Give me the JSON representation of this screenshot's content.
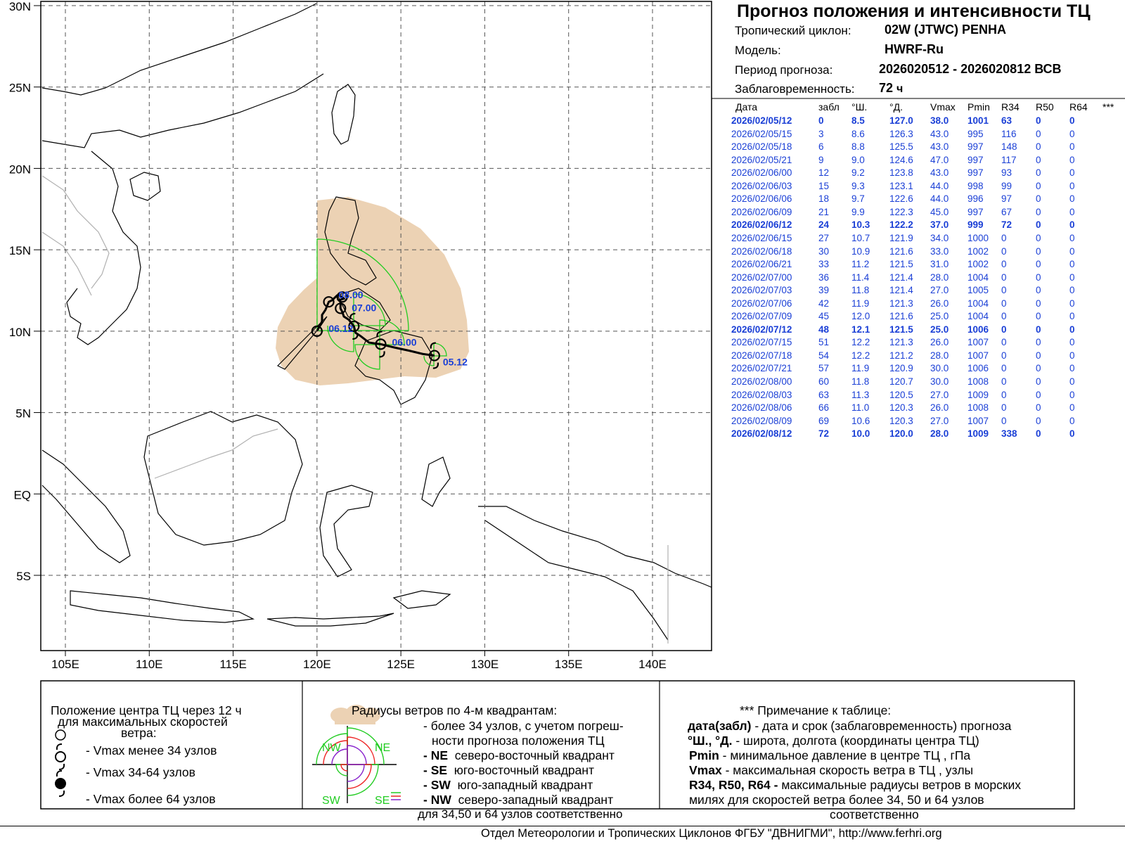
{
  "header": {
    "title": "Прогноз положения и интенсивности ТЦ",
    "cyclone_label": "Тропический циклон:",
    "cyclone_value": "02W (JTWC)  PENHA",
    "model_label": "Модель:",
    "model_value": "HWRF-Ru",
    "period_label": "Период прогноза:",
    "period_value": "2026020512 - 2026020812 ВСВ",
    "lead_label": "Заблаговременность:",
    "lead_value": "72",
    "lead_unit": "ч"
  },
  "table": {
    "columns": [
      "Дата",
      "забл",
      "°Ш.",
      "°Д.",
      "Vmax",
      "Pmin",
      "R34",
      "R50",
      "R64",
      "***"
    ],
    "rows": [
      {
        "date": "2026/02/05/12",
        "lead": "0",
        "lat": "8.5",
        "lon": "127.0",
        "vmax": "38.0",
        "pmin": "1001",
        "r34": "63",
        "r50": "0",
        "r64": "0",
        "bold": true
      },
      {
        "date": "2026/02/05/15",
        "lead": "3",
        "lat": "8.6",
        "lon": "126.3",
        "vmax": "43.0",
        "pmin": "995",
        "r34": "116",
        "r50": "0",
        "r64": "0",
        "bold": false
      },
      {
        "date": "2026/02/05/18",
        "lead": "6",
        "lat": "8.8",
        "lon": "125.5",
        "vmax": "43.0",
        "pmin": "997",
        "r34": "148",
        "r50": "0",
        "r64": "0",
        "bold": false
      },
      {
        "date": "2026/02/05/21",
        "lead": "9",
        "lat": "9.0",
        "lon": "124.6",
        "vmax": "47.0",
        "pmin": "997",
        "r34": "117",
        "r50": "0",
        "r64": "0",
        "bold": false
      },
      {
        "date": "2026/02/06/00",
        "lead": "12",
        "lat": "9.2",
        "lon": "123.8",
        "vmax": "43.0",
        "pmin": "997",
        "r34": "93",
        "r50": "0",
        "r64": "0",
        "bold": false
      },
      {
        "date": "2026/02/06/03",
        "lead": "15",
        "lat": "9.3",
        "lon": "123.1",
        "vmax": "44.0",
        "pmin": "998",
        "r34": "99",
        "r50": "0",
        "r64": "0",
        "bold": false
      },
      {
        "date": "2026/02/06/06",
        "lead": "18",
        "lat": "9.7",
        "lon": "122.6",
        "vmax": "44.0",
        "pmin": "996",
        "r34": "97",
        "r50": "0",
        "r64": "0",
        "bold": false
      },
      {
        "date": "2026/02/06/09",
        "lead": "21",
        "lat": "9.9",
        "lon": "122.3",
        "vmax": "45.0",
        "pmin": "997",
        "r34": "67",
        "r50": "0",
        "r64": "0",
        "bold": false
      },
      {
        "date": "2026/02/06/12",
        "lead": "24",
        "lat": "10.3",
        "lon": "122.2",
        "vmax": "37.0",
        "pmin": "999",
        "r34": "72",
        "r50": "0",
        "r64": "0",
        "bold": true
      },
      {
        "date": "2026/02/06/15",
        "lead": "27",
        "lat": "10.7",
        "lon": "121.9",
        "vmax": "34.0",
        "pmin": "1000",
        "r34": "0",
        "r50": "0",
        "r64": "0",
        "bold": false
      },
      {
        "date": "2026/02/06/18",
        "lead": "30",
        "lat": "10.9",
        "lon": "121.6",
        "vmax": "33.0",
        "pmin": "1002",
        "r34": "0",
        "r50": "0",
        "r64": "0",
        "bold": false
      },
      {
        "date": "2026/02/06/21",
        "lead": "33",
        "lat": "11.2",
        "lon": "121.5",
        "vmax": "31.0",
        "pmin": "1002",
        "r34": "0",
        "r50": "0",
        "r64": "0",
        "bold": false
      },
      {
        "date": "2026/02/07/00",
        "lead": "36",
        "lat": "11.4",
        "lon": "121.4",
        "vmax": "28.0",
        "pmin": "1004",
        "r34": "0",
        "r50": "0",
        "r64": "0",
        "bold": false
      },
      {
        "date": "2026/02/07/03",
        "lead": "39",
        "lat": "11.8",
        "lon": "121.4",
        "vmax": "27.0",
        "pmin": "1005",
        "r34": "0",
        "r50": "0",
        "r64": "0",
        "bold": false
      },
      {
        "date": "2026/02/07/06",
        "lead": "42",
        "lat": "11.9",
        "lon": "121.3",
        "vmax": "26.0",
        "pmin": "1004",
        "r34": "0",
        "r50": "0",
        "r64": "0",
        "bold": false
      },
      {
        "date": "2026/02/07/09",
        "lead": "45",
        "lat": "12.0",
        "lon": "121.6",
        "vmax": "25.0",
        "pmin": "1004",
        "r34": "0",
        "r50": "0",
        "r64": "0",
        "bold": false
      },
      {
        "date": "2026/02/07/12",
        "lead": "48",
        "lat": "12.1",
        "lon": "121.5",
        "vmax": "25.0",
        "pmin": "1006",
        "r34": "0",
        "r50": "0",
        "r64": "0",
        "bold": true
      },
      {
        "date": "2026/02/07/15",
        "lead": "51",
        "lat": "12.2",
        "lon": "121.3",
        "vmax": "26.0",
        "pmin": "1007",
        "r34": "0",
        "r50": "0",
        "r64": "0",
        "bold": false
      },
      {
        "date": "2026/02/07/18",
        "lead": "54",
        "lat": "12.2",
        "lon": "121.2",
        "vmax": "28.0",
        "pmin": "1007",
        "r34": "0",
        "r50": "0",
        "r64": "0",
        "bold": false
      },
      {
        "date": "2026/02/07/21",
        "lead": "57",
        "lat": "11.9",
        "lon": "120.9",
        "vmax": "30.0",
        "pmin": "1006",
        "r34": "0",
        "r50": "0",
        "r64": "0",
        "bold": false
      },
      {
        "date": "2026/02/08/00",
        "lead": "60",
        "lat": "11.8",
        "lon": "120.7",
        "vmax": "30.0",
        "pmin": "1008",
        "r34": "0",
        "r50": "0",
        "r64": "0",
        "bold": false
      },
      {
        "date": "2026/02/08/03",
        "lead": "63",
        "lat": "11.3",
        "lon": "120.5",
        "vmax": "27.0",
        "pmin": "1009",
        "r34": "0",
        "r50": "0",
        "r64": "0",
        "bold": false
      },
      {
        "date": "2026/02/08/06",
        "lead": "66",
        "lat": "11.0",
        "lon": "120.3",
        "vmax": "26.0",
        "pmin": "1008",
        "r34": "0",
        "r50": "0",
        "r64": "0",
        "bold": false
      },
      {
        "date": "2026/02/08/09",
        "lead": "69",
        "lat": "10.6",
        "lon": "120.3",
        "vmax": "27.0",
        "pmin": "1007",
        "r34": "0",
        "r50": "0",
        "r64": "0",
        "bold": false
      },
      {
        "date": "2026/02/08/12",
        "lead": "72",
        "lat": "10.0",
        "lon": "120.0",
        "vmax": "28.0",
        "pmin": "1009",
        "r34": "338",
        "r50": "0",
        "r64": "0",
        "bold": true
      }
    ]
  },
  "map": {
    "lat_labels": [
      "30N",
      "25N",
      "20N",
      "15N",
      "10N",
      "5N",
      "EQ",
      "5S"
    ],
    "lon_labels": [
      "105E",
      "110E",
      "115E",
      "120E",
      "125E",
      "130E",
      "135E",
      "140E"
    ],
    "lat_values": [
      30,
      25,
      20,
      15,
      10,
      5,
      0,
      -5
    ],
    "lon_values": [
      105,
      110,
      115,
      120,
      125,
      130,
      135,
      140
    ],
    "lon_range": [
      103.5,
      143.5
    ],
    "lat_range": [
      -9.5,
      30
    ],
    "track_labels": [
      {
        "text": "05.12",
        "lat": 8.5,
        "lon": 127.0
      },
      {
        "text": "06.00",
        "lat": 9.2,
        "lon": 123.8
      },
      {
        "text": "06.12",
        "lat": 10.3,
        "lon": 122.2
      },
      {
        "text": "07.00",
        "lat": 11.4,
        "lon": 121.4
      },
      {
        "text": "08.00",
        "lat": 11.8,
        "lon": 120.7
      }
    ],
    "land_color": "#000000",
    "border_color": "#b0b0b0",
    "uncertainty_color": "#ecd2b4",
    "r34_color": "#22cc22",
    "label_color": "#1a3fd6"
  },
  "legend": {
    "box1_title": "Положение центра ТЦ через 12 ч\nдля максимальных скоростей\nветра:",
    "box1_title_l1": "Положение центра ТЦ через 12 ч",
    "box1_title_l2": "для максимальных скоростей",
    "box1_title_l3": "ветра:",
    "box1_item1": "- Vmax  менее 34 узлов",
    "box1_item2": "- Vmax  34-64 узлов",
    "box1_item3": "- Vmax  более 64 узлов",
    "box2_title": "Радиусы ветров по 4-м квадрантам:",
    "box2_l1": "- более 34 узлов, с учетом погреш-",
    "box2_l2": "ности прогноза положения ТЦ",
    "box2_ne_key": "- NE",
    "box2_ne": "северо-восточный квадрант",
    "box2_se_key": "- SE",
    "box2_se": "юго-восточный квадрант",
    "box2_sw_key": "- SW",
    "box2_sw": "юго-западный квадрант",
    "box2_nw_key": "- NW",
    "box2_nw": "северо-западный квадрант",
    "box2_last": "для 34,50 и 64 узлов соответственно",
    "quad_nw": "NW",
    "quad_ne": "NE",
    "quad_sw": "SW",
    "quad_se": "SE",
    "box3_title": "*** Примечание к таблице:",
    "box3_l1_key": "дата(забл)",
    "box3_l1": " - дата и срок (заблаговременность) прогноза",
    "box3_l2_key": "°Ш., °Д.",
    "box3_l2": " - широта, долгота   (координаты центра ТЦ)",
    "box3_l3_key": "Pmin",
    "box3_l3": "  - минимальное давление в центре ТЦ , гПа",
    "box3_l4_key": "Vmax",
    "box3_l4": "   -  максимальная скорость ветра в ТЦ , узлы",
    "box3_l5_key": "R34, R50, R64 -",
    "box3_l5": "  максимальные радиусы ветров в морских",
    "box3_l6": "милях для скоростей ветра более 34, 50 и 64 узлов",
    "box3_l7": "соответственно",
    "r34_color": "#22cc22",
    "r50_color": "#ee2222",
    "r64_color": "#8822cc"
  },
  "footer": {
    "text": "Отдел Метеорологии и Тропических Циклонов ФГБУ \"ДВНИГМИ\",  http://www.ferhri.org"
  }
}
